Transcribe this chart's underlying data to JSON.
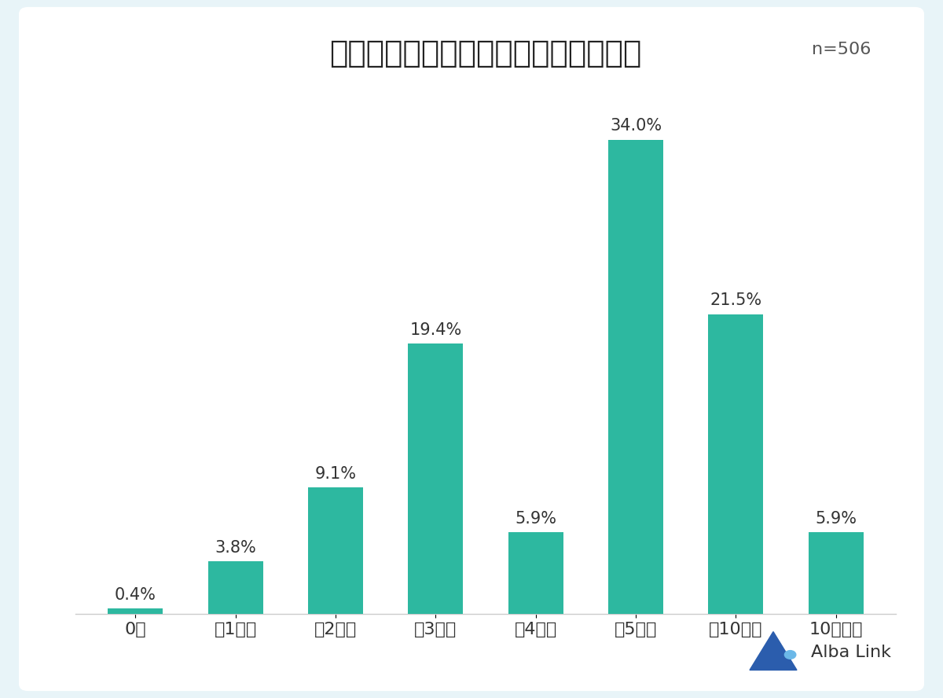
{
  "title": "一人暮らしの一ヶ月の理想的な貯金額",
  "n_label": "n=506",
  "categories": [
    "0円",
    "～1万円",
    "～2万円",
    "～3万円",
    "～4万円",
    "～5万円",
    "～10万円",
    "10万円超"
  ],
  "values": [
    0.4,
    3.8,
    9.1,
    19.4,
    5.9,
    34.0,
    21.5,
    5.9
  ],
  "bar_color": "#2DB8A0",
  "background_color": "#FFFFFF",
  "outer_background": "#E8F4F8",
  "title_fontsize": 28,
  "label_fontsize": 15,
  "tick_fontsize": 16,
  "n_fontsize": 16,
  "bar_label_fontsize": 15,
  "ylim": [
    0,
    38
  ],
  "logo_text": "Alba Link",
  "logo_color": "#2B5DAD"
}
